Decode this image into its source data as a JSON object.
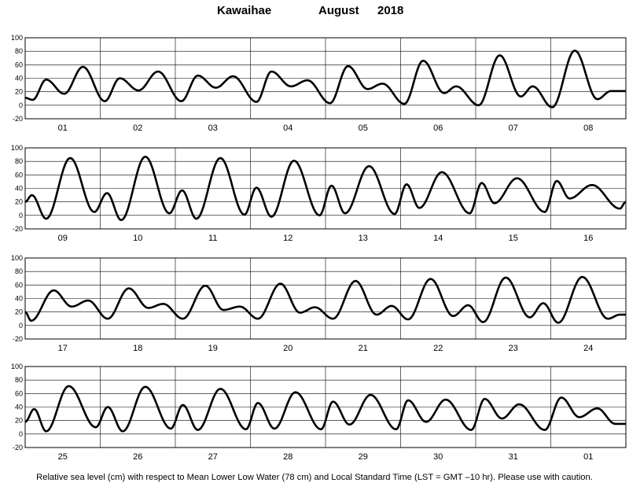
{
  "header": {
    "station": "Kawaihae",
    "month": "August",
    "year": "2018"
  },
  "footer": {
    "note": "Relative sea level (cm) with respect to Mean Lower Low Water (78 cm) and Local Standard Time (LST = GMT –10 hr). Please use with caution."
  },
  "chart_data": {
    "type": "line",
    "title": "Kawaihae          August   2018",
    "xlabel": "",
    "ylabel": "",
    "ylim": [
      -20,
      100
    ],
    "yticks": [
      -20,
      0,
      20,
      40,
      60,
      80,
      100
    ],
    "grid": true,
    "panels": [
      {
        "days": [
          "01",
          "02",
          "03",
          "04",
          "05",
          "06",
          "07",
          "08"
        ],
        "extrema": [
          [
            0,
            11
          ],
          [
            0.1,
            8
          ],
          [
            0.28,
            38
          ],
          [
            0.52,
            17
          ],
          [
            0.77,
            57
          ],
          [
            1.06,
            6
          ],
          [
            1.26,
            40
          ],
          [
            1.51,
            22
          ],
          [
            1.77,
            50
          ],
          [
            2.08,
            6
          ],
          [
            2.3,
            44
          ],
          [
            2.54,
            26
          ],
          [
            2.77,
            43
          ],
          [
            3.08,
            5
          ],
          [
            3.28,
            50
          ],
          [
            3.54,
            28
          ],
          [
            3.76,
            37
          ],
          [
            4.06,
            3
          ],
          [
            4.3,
            58
          ],
          [
            4.56,
            24
          ],
          [
            4.76,
            32
          ],
          [
            5.05,
            2
          ],
          [
            5.3,
            66
          ],
          [
            5.58,
            18
          ],
          [
            5.74,
            28
          ],
          [
            6.04,
            0
          ],
          [
            6.32,
            74
          ],
          [
            6.6,
            13
          ],
          [
            6.76,
            28
          ],
          [
            7.02,
            -3
          ],
          [
            7.32,
            81
          ],
          [
            7.62,
            9
          ],
          [
            7.8,
            21
          ],
          [
            8.0,
            21
          ]
        ]
      },
      {
        "days": [
          "09",
          "10",
          "11",
          "12",
          "13",
          "14",
          "15",
          "16"
        ],
        "extrema": [
          [
            0,
            20
          ],
          [
            0.09,
            30
          ],
          [
            0.28,
            -5
          ],
          [
            0.6,
            85
          ],
          [
            0.92,
            5
          ],
          [
            1.09,
            33
          ],
          [
            1.28,
            -7
          ],
          [
            1.6,
            87
          ],
          [
            1.92,
            3
          ],
          [
            2.09,
            37
          ],
          [
            2.28,
            -5
          ],
          [
            2.6,
            85
          ],
          [
            2.92,
            1
          ],
          [
            3.08,
            41
          ],
          [
            3.28,
            -2
          ],
          [
            3.58,
            81
          ],
          [
            3.92,
            0
          ],
          [
            4.08,
            44
          ],
          [
            4.26,
            3
          ],
          [
            4.58,
            73
          ],
          [
            4.92,
            2
          ],
          [
            5.08,
            46
          ],
          [
            5.25,
            11
          ],
          [
            5.55,
            64
          ],
          [
            5.92,
            3
          ],
          [
            6.08,
            48
          ],
          [
            6.25,
            18
          ],
          [
            6.55,
            55
          ],
          [
            6.92,
            5
          ],
          [
            7.08,
            51
          ],
          [
            7.25,
            25
          ],
          [
            7.55,
            45
          ],
          [
            7.92,
            10
          ],
          [
            8.0,
            20
          ]
        ]
      },
      {
        "days": [
          "17",
          "18",
          "19",
          "20",
          "21",
          "22",
          "23",
          "24"
        ],
        "extrema": [
          [
            0,
            20
          ],
          [
            0.08,
            7
          ],
          [
            0.38,
            52
          ],
          [
            0.62,
            28
          ],
          [
            0.84,
            37
          ],
          [
            1.1,
            10
          ],
          [
            1.38,
            55
          ],
          [
            1.64,
            26
          ],
          [
            1.84,
            32
          ],
          [
            2.1,
            10
          ],
          [
            2.4,
            59
          ],
          [
            2.64,
            23
          ],
          [
            2.86,
            28
          ],
          [
            3.1,
            10
          ],
          [
            3.4,
            62
          ],
          [
            3.66,
            19
          ],
          [
            3.86,
            27
          ],
          [
            4.1,
            10
          ],
          [
            4.4,
            66
          ],
          [
            4.68,
            16
          ],
          [
            4.88,
            29
          ],
          [
            5.1,
            9
          ],
          [
            5.4,
            69
          ],
          [
            5.7,
            14
          ],
          [
            5.9,
            30
          ],
          [
            6.1,
            5
          ],
          [
            6.4,
            71
          ],
          [
            6.72,
            12
          ],
          [
            6.9,
            33
          ],
          [
            7.1,
            4
          ],
          [
            7.42,
            72
          ],
          [
            7.76,
            10
          ],
          [
            7.92,
            16
          ],
          [
            8.0,
            16
          ]
        ]
      },
      {
        "days": [
          "25",
          "26",
          "27",
          "28",
          "29",
          "30",
          "31",
          "01"
        ],
        "extrema": [
          [
            0,
            18
          ],
          [
            0.12,
            37
          ],
          [
            0.28,
            4
          ],
          [
            0.58,
            71
          ],
          [
            0.94,
            10
          ],
          [
            1.1,
            40
          ],
          [
            1.3,
            4
          ],
          [
            1.6,
            70
          ],
          [
            1.94,
            8
          ],
          [
            2.1,
            43
          ],
          [
            2.3,
            6
          ],
          [
            2.6,
            67
          ],
          [
            2.94,
            7
          ],
          [
            3.1,
            46
          ],
          [
            3.32,
            8
          ],
          [
            3.6,
            62
          ],
          [
            3.94,
            7
          ],
          [
            4.1,
            48
          ],
          [
            4.32,
            14
          ],
          [
            4.6,
            58
          ],
          [
            4.94,
            7
          ],
          [
            5.1,
            50
          ],
          [
            5.34,
            18
          ],
          [
            5.6,
            51
          ],
          [
            5.94,
            6
          ],
          [
            6.12,
            52
          ],
          [
            6.35,
            23
          ],
          [
            6.58,
            44
          ],
          [
            6.92,
            6
          ],
          [
            7.14,
            54
          ],
          [
            7.38,
            25
          ],
          [
            7.62,
            38
          ],
          [
            7.86,
            15
          ],
          [
            8.0,
            15
          ]
        ]
      }
    ]
  }
}
